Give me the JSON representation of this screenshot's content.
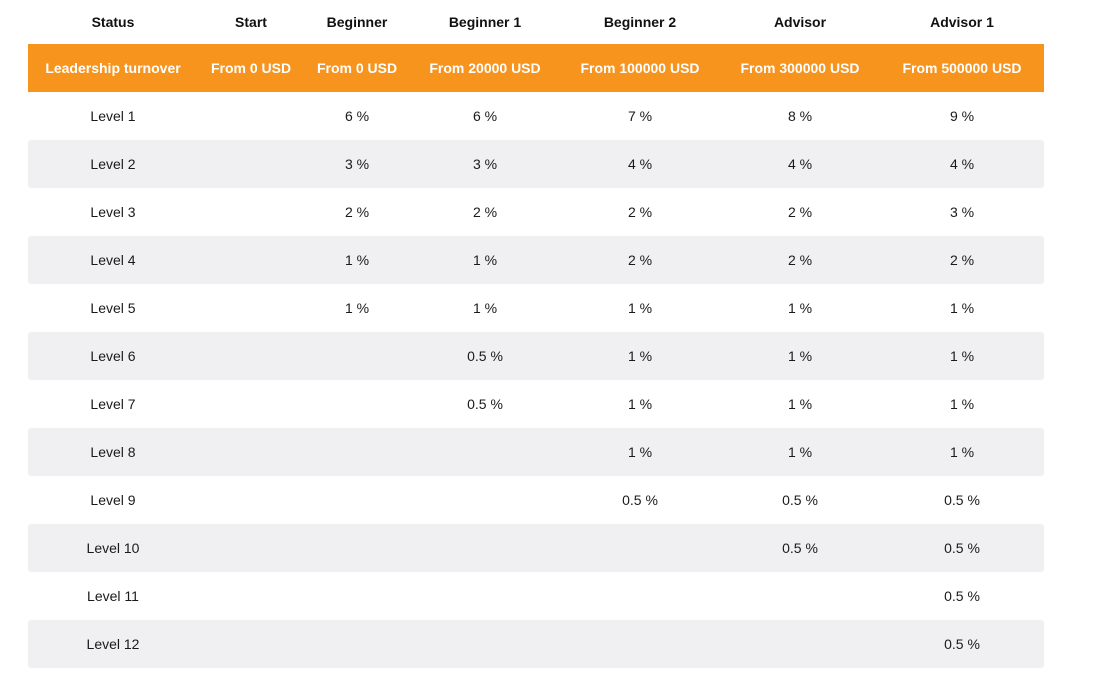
{
  "table": {
    "status_label": "Status",
    "statuses": [
      "Start",
      "Beginner",
      "Beginner 1",
      "Beginner 2",
      "Advisor",
      "Advisor 1"
    ],
    "turnover_label": "Leadership turnover",
    "turnovers": [
      "From 0 USD",
      "From 0 USD",
      "From 20000 USD",
      "From 100000 USD",
      "From 300000 USD",
      "From 500000 USD"
    ],
    "rows": [
      {
        "level": "Level 1",
        "cells": [
          "",
          "6 %",
          "6 %",
          "7 %",
          "8 %",
          "9 %"
        ]
      },
      {
        "level": "Level 2",
        "cells": [
          "",
          "3 %",
          "3 %",
          "4 %",
          "4 %",
          "4 %"
        ]
      },
      {
        "level": "Level 3",
        "cells": [
          "",
          "2 %",
          "2 %",
          "2 %",
          "2 %",
          "3 %"
        ]
      },
      {
        "level": "Level 4",
        "cells": [
          "",
          "1 %",
          "1 %",
          "2 %",
          "2 %",
          "2 %"
        ]
      },
      {
        "level": "Level 5",
        "cells": [
          "",
          "1 %",
          "1 %",
          "1 %",
          "1 %",
          "1 %"
        ]
      },
      {
        "level": "Level 6",
        "cells": [
          "",
          "",
          "0.5 %",
          "1 %",
          "1 %",
          "1 %"
        ]
      },
      {
        "level": "Level 7",
        "cells": [
          "",
          "",
          "0.5 %",
          "1 %",
          "1 %",
          "1 %"
        ]
      },
      {
        "level": "Level 8",
        "cells": [
          "",
          "",
          "",
          "1 %",
          "1 %",
          "1 %"
        ]
      },
      {
        "level": "Level 9",
        "cells": [
          "",
          "",
          "",
          "0.5 %",
          "0.5 %",
          "0.5 %"
        ]
      },
      {
        "level": "Level 10",
        "cells": [
          "",
          "",
          "",
          "",
          "0.5 %",
          "0.5 %"
        ]
      },
      {
        "level": "Level 11",
        "cells": [
          "",
          "",
          "",
          "",
          "",
          "0.5 %"
        ]
      },
      {
        "level": "Level 12",
        "cells": [
          "",
          "",
          "",
          "",
          "",
          "0.5 %"
        ]
      }
    ]
  },
  "colors": {
    "accent": "#f7941d",
    "stripe": "#f0f0f2"
  }
}
